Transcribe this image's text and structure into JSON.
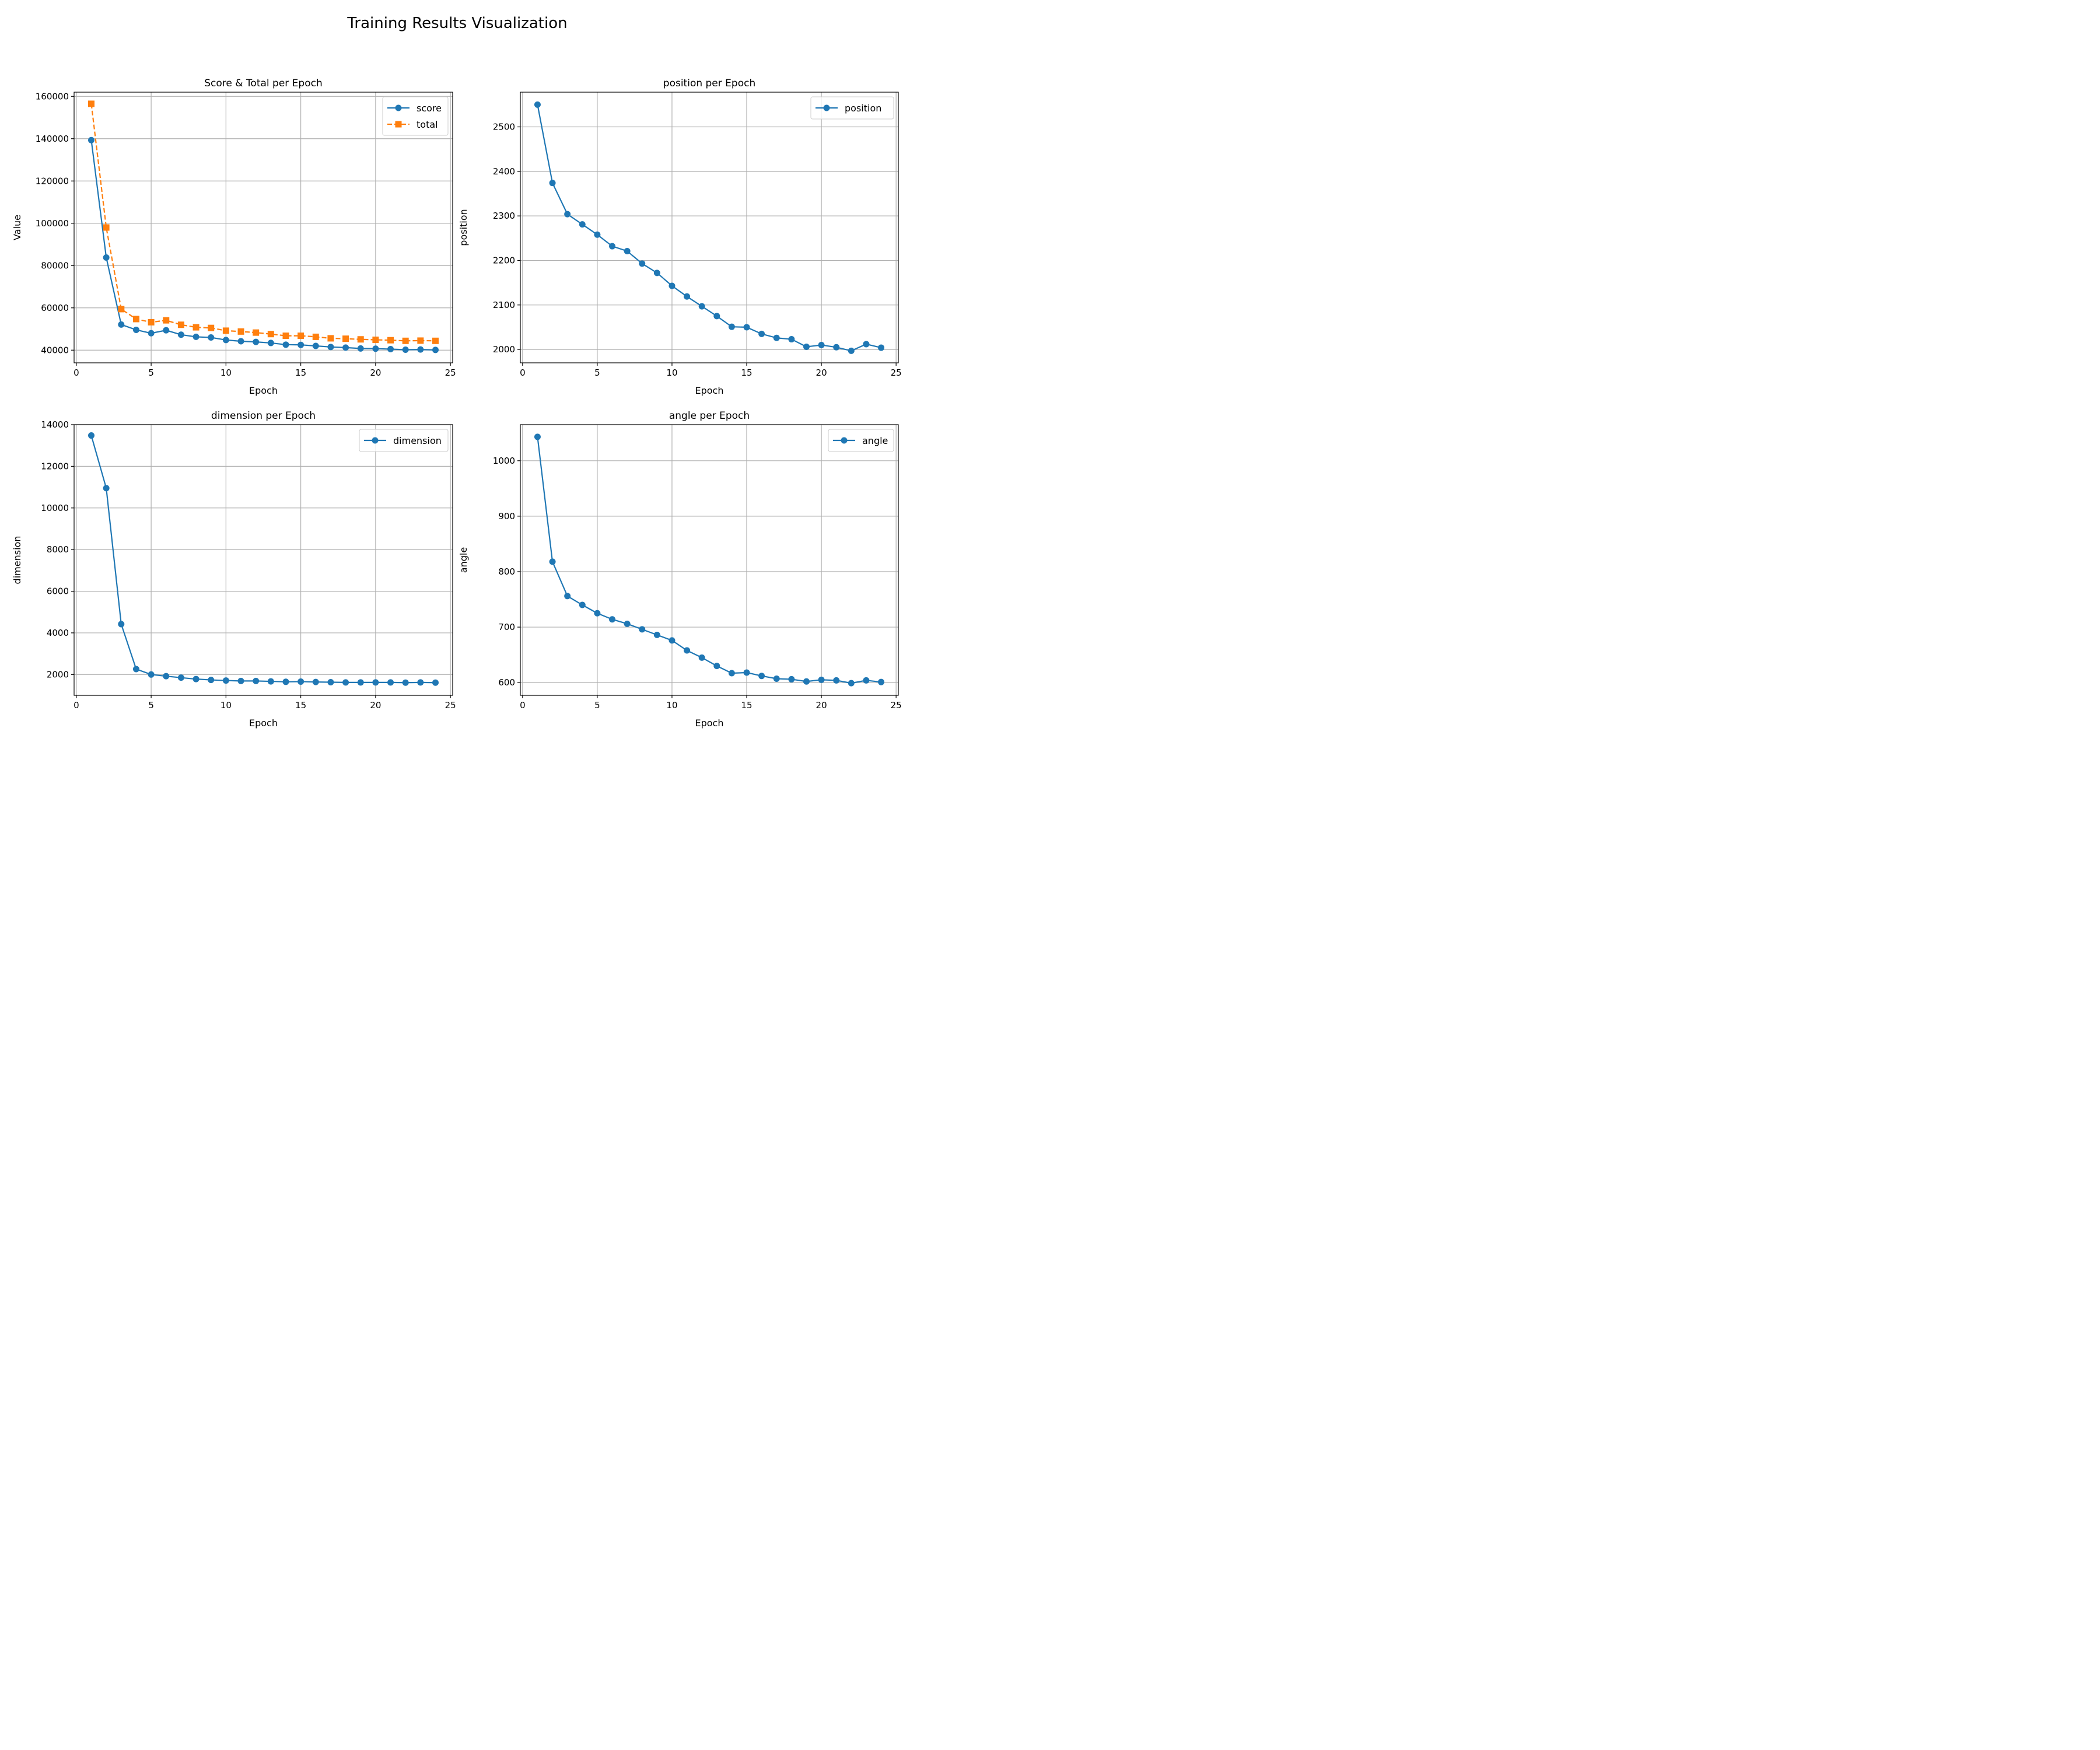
{
  "figure": {
    "suptitle": "Training Results Visualization"
  },
  "chart_data": [
    {
      "type": "line",
      "title": "Score & Total per Epoch",
      "xlabel": "Epoch",
      "ylabel": "Value",
      "xlim": [
        -0.15,
        25.15
      ],
      "ylim": [
        34000,
        162000
      ],
      "xticks": [
        0,
        5,
        10,
        15,
        20,
        25
      ],
      "yticks": [
        40000,
        60000,
        80000,
        100000,
        120000,
        140000,
        160000
      ],
      "grid": true,
      "legend_position": "top-right",
      "x": [
        1,
        2,
        3,
        4,
        5,
        6,
        7,
        8,
        9,
        10,
        11,
        12,
        13,
        14,
        15,
        16,
        17,
        18,
        19,
        20,
        21,
        22,
        23,
        24
      ],
      "series": [
        {
          "name": "score",
          "color": "#1f77b4",
          "marker": "circle",
          "linestyle": "solid",
          "values": [
            139300,
            83800,
            52100,
            49600,
            48000,
            49400,
            47300,
            46300,
            46000,
            44800,
            44200,
            43900,
            43400,
            42600,
            42500,
            42000,
            41500,
            41200,
            40800,
            40700,
            40500,
            40200,
            40300,
            40100
          ]
        },
        {
          "name": "total",
          "color": "#ff7f0e",
          "marker": "square",
          "linestyle": "dashed",
          "values": [
            156500,
            98000,
            59400,
            54700,
            53200,
            54100,
            52000,
            50800,
            50500,
            49200,
            48800,
            48300,
            47600,
            46800,
            46800,
            46300,
            45600,
            45400,
            45100,
            44900,
            44700,
            44400,
            44500,
            44400
          ]
        }
      ]
    },
    {
      "type": "line",
      "title": "position per Epoch",
      "xlabel": "Epoch",
      "ylabel": "position",
      "xlim": [
        -0.15,
        25.15
      ],
      "ylim": [
        1970,
        2578
      ],
      "xticks": [
        0,
        5,
        10,
        15,
        20,
        25
      ],
      "yticks": [
        2000,
        2100,
        2200,
        2300,
        2400,
        2500
      ],
      "grid": true,
      "legend_position": "top-right",
      "x": [
        1,
        2,
        3,
        4,
        5,
        6,
        7,
        8,
        9,
        10,
        11,
        12,
        13,
        14,
        15,
        16,
        17,
        18,
        19,
        20,
        21,
        22,
        23,
        24
      ],
      "series": [
        {
          "name": "position",
          "color": "#1f77b4",
          "marker": "circle",
          "linestyle": "solid",
          "values": [
            2550,
            2374,
            2304,
            2281,
            2258,
            2232,
            2221,
            2193,
            2172,
            2143,
            2119,
            2097,
            2075,
            2051,
            2050,
            2035,
            2026,
            2023,
            2006,
            2010,
            2005,
            1997,
            2012,
            2004
          ]
        }
      ]
    },
    {
      "type": "line",
      "title": "dimension per Epoch",
      "xlabel": "Epoch",
      "ylabel": "dimension",
      "xlim": [
        -0.15,
        25.15
      ],
      "ylim": [
        1000,
        14000
      ],
      "xticks": [
        0,
        5,
        10,
        15,
        20,
        25
      ],
      "yticks": [
        2000,
        4000,
        6000,
        8000,
        10000,
        12000,
        14000
      ],
      "grid": true,
      "legend_position": "top-right",
      "x": [
        1,
        2,
        3,
        4,
        5,
        6,
        7,
        8,
        9,
        10,
        11,
        12,
        13,
        14,
        15,
        16,
        17,
        18,
        19,
        20,
        21,
        22,
        23,
        24
      ],
      "series": [
        {
          "name": "dimension",
          "color": "#1f77b4",
          "marker": "circle",
          "linestyle": "solid",
          "values": [
            13480,
            10950,
            4420,
            2260,
            2000,
            1920,
            1850,
            1780,
            1740,
            1710,
            1690,
            1690,
            1670,
            1650,
            1660,
            1640,
            1630,
            1620,
            1620,
            1620,
            1620,
            1610,
            1620,
            1610
          ]
        }
      ]
    },
    {
      "type": "line",
      "title": "angle per Epoch",
      "xlabel": "Epoch",
      "ylabel": "angle",
      "xlim": [
        -0.15,
        25.15
      ],
      "ylim": [
        577,
        1065
      ],
      "xticks": [
        0,
        5,
        10,
        15,
        20,
        25
      ],
      "yticks": [
        600,
        700,
        800,
        900,
        1000
      ],
      "grid": true,
      "legend_position": "top-right",
      "x": [
        1,
        2,
        3,
        4,
        5,
        6,
        7,
        8,
        9,
        10,
        11,
        12,
        13,
        14,
        15,
        16,
        17,
        18,
        19,
        20,
        21,
        22,
        23,
        24
      ],
      "series": [
        {
          "name": "angle",
          "color": "#1f77b4",
          "marker": "circle",
          "linestyle": "solid",
          "values": [
            1043,
            818,
            756,
            740,
            725,
            714,
            706,
            696,
            686,
            676,
            658,
            645,
            630,
            617,
            618,
            612,
            607,
            606,
            602,
            605,
            604,
            599,
            604,
            601
          ]
        }
      ]
    }
  ]
}
